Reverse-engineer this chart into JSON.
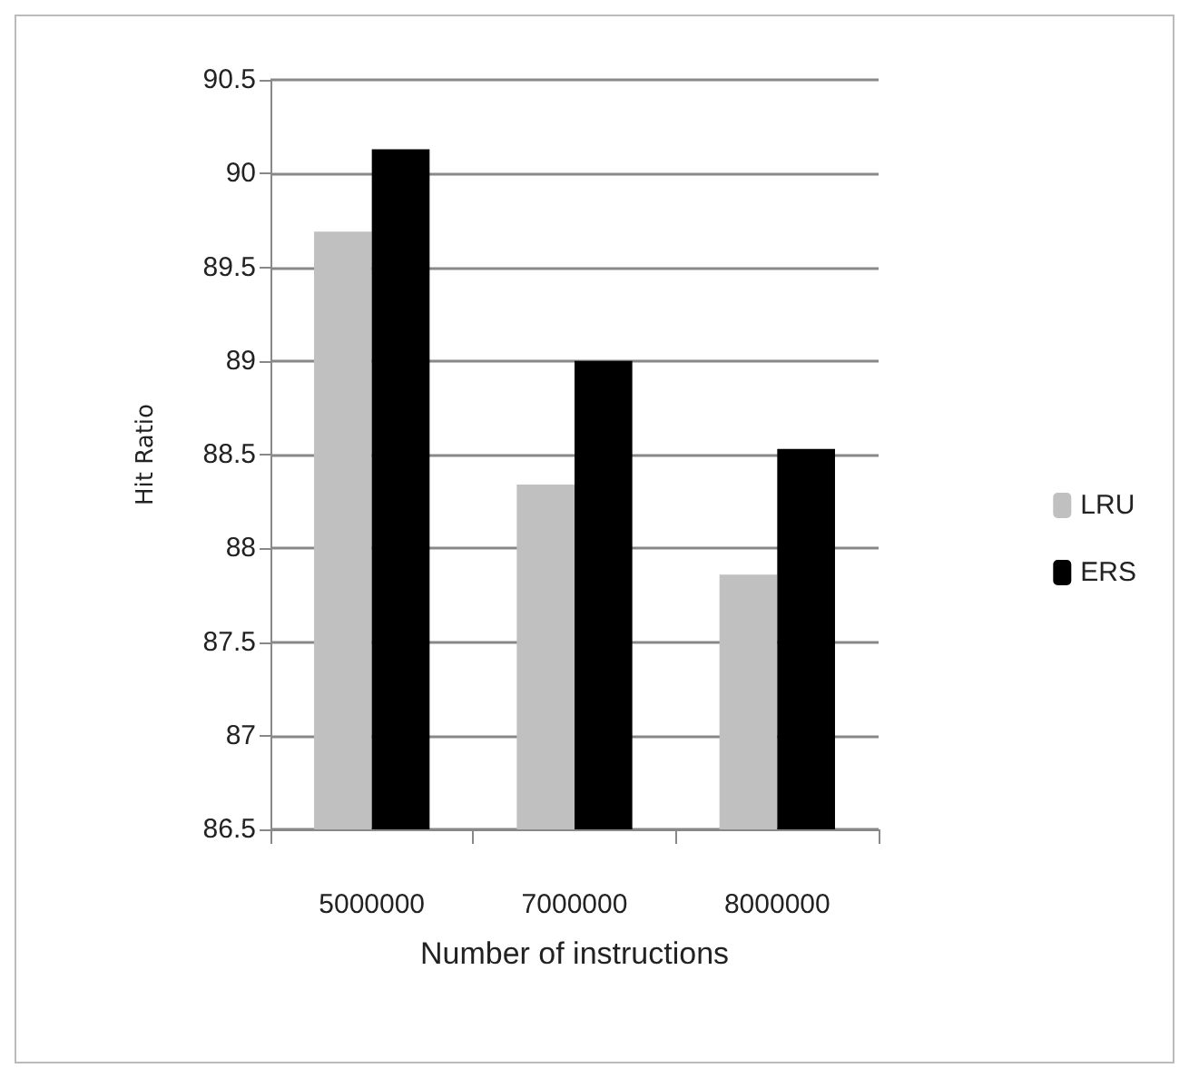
{
  "chart_data": {
    "type": "bar",
    "xlabel": "Number of instructions",
    "ylabel": "Hit Ratio",
    "categories": [
      "5000000",
      "7000000",
      "8000000"
    ],
    "series": [
      {
        "name": "LRU",
        "color": "#c0c0c0",
        "values": [
          89.69,
          88.34,
          87.86
        ]
      },
      {
        "name": "ERS",
        "color": "#000000",
        "values": [
          90.13,
          89.0,
          88.53
        ]
      }
    ],
    "ylim": [
      86.5,
      90.5
    ],
    "yticks": [
      86.5,
      87,
      87.5,
      88,
      88.5,
      89,
      89.5,
      90,
      90.5
    ],
    "grid": "y",
    "legend": "right"
  }
}
